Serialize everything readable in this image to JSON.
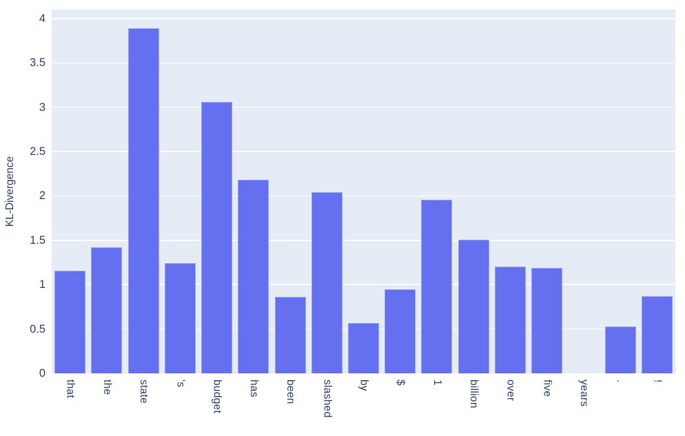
{
  "chart_data": {
    "type": "bar",
    "title": "",
    "categories": [
      "that",
      "the",
      "state",
      "'s",
      "budget",
      "has",
      "been",
      "slashed",
      "by",
      "$",
      "1",
      "billion",
      "over",
      "five",
      "years",
      ".",
      "!"
    ],
    "values": [
      1.16,
      1.42,
      3.89,
      1.24,
      3.06,
      2.18,
      0.86,
      2.04,
      0.57,
      0.95,
      1.96,
      1.51,
      1.2,
      1.19,
      0.0,
      0.53,
      0.87
    ],
    "xlabel": "",
    "ylabel": "KL-Divergence",
    "ylim": [
      0,
      4.1
    ],
    "yticks": [
      "0",
      "0.5",
      "1",
      "1.5",
      "2",
      "2.5",
      "3",
      "3.5",
      "4"
    ],
    "grid": true,
    "legend": "none"
  },
  "colors": {
    "bar": "#6470ef",
    "bar_edge": "#9aa4f6",
    "plot_background": "#e5ecf6",
    "paper_background": "#ffffff",
    "gridline": "#ffffff",
    "text": "#2a3f5f"
  }
}
